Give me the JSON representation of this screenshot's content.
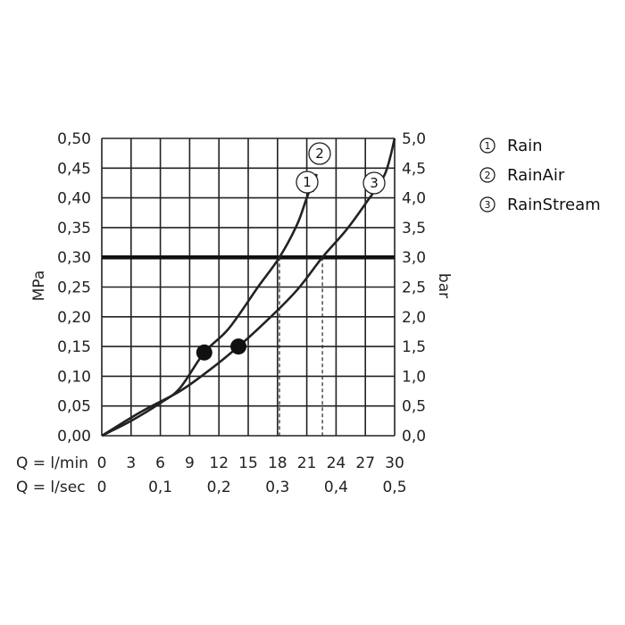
{
  "chart_data": {
    "type": "line",
    "x_axes": [
      {
        "label": "Q = l/min",
        "ticks": [
          "0",
          "3",
          "6",
          "9",
          "12",
          "15",
          "18",
          "21",
          "24",
          "27",
          "30"
        ]
      },
      {
        "label": "Q = l/sec",
        "ticks": [
          "0",
          "0,1",
          "0,2",
          "0,3",
          "0,4",
          "0,5"
        ]
      }
    ],
    "y_left": {
      "label": "MPa",
      "ticks": [
        "0,00",
        "0,05",
        "0,10",
        "0,15",
        "0,20",
        "0,25",
        "0,30",
        "0,35",
        "0,40",
        "0,45",
        "0,50"
      ]
    },
    "y_right": {
      "label": "bar",
      "ticks": [
        "0,0",
        "0,5",
        "1,0",
        "1,5",
        "2,0",
        "2,5",
        "3,0",
        "3,5",
        "4,0",
        "4,5",
        "5,0"
      ]
    },
    "xlim": [
      0,
      30
    ],
    "ylim": [
      0,
      0.5
    ],
    "grid": true,
    "reference_line": {
      "y": 0.3
    },
    "series": [
      {
        "marker": "1",
        "name": "Rain",
        "x": [
          0,
          3,
          6,
          8,
          10.5,
          13,
          16,
          18.2,
          20,
          21,
          22
        ],
        "y": [
          0,
          0.025,
          0.055,
          0.08,
          0.14,
          0.18,
          0.25,
          0.3,
          0.355,
          0.4,
          0.44
        ]
      },
      {
        "marker": "2",
        "name": "RainAir",
        "x": [
          0,
          3,
          6,
          8,
          10.5,
          13,
          16,
          18.2,
          20,
          21,
          22
        ],
        "y": [
          0,
          0.025,
          0.055,
          0.08,
          0.14,
          0.18,
          0.25,
          0.3,
          0.355,
          0.4,
          0.44
        ]
      },
      {
        "marker": "3",
        "name": "RainStream",
        "x": [
          0,
          4,
          8,
          11,
          14,
          17,
          20,
          22.6,
          25,
          27,
          29,
          30
        ],
        "y": [
          0,
          0.04,
          0.075,
          0.11,
          0.15,
          0.195,
          0.245,
          0.3,
          0.345,
          0.39,
          0.44,
          0.5
        ]
      }
    ],
    "operating_points": [
      {
        "x": 10.5,
        "y": 0.14
      },
      {
        "x": 14,
        "y": 0.15
      }
    ],
    "flow_markers": [
      {
        "x": 18.2,
        "y": 0.3
      },
      {
        "x": 22.6,
        "y": 0.3
      }
    ],
    "legend": {
      "placement": "right",
      "entries": [
        {
          "number": "1",
          "label": "Rain"
        },
        {
          "number": "2",
          "label": "RainAir"
        },
        {
          "number": "3",
          "label": "RainStream"
        }
      ]
    }
  }
}
